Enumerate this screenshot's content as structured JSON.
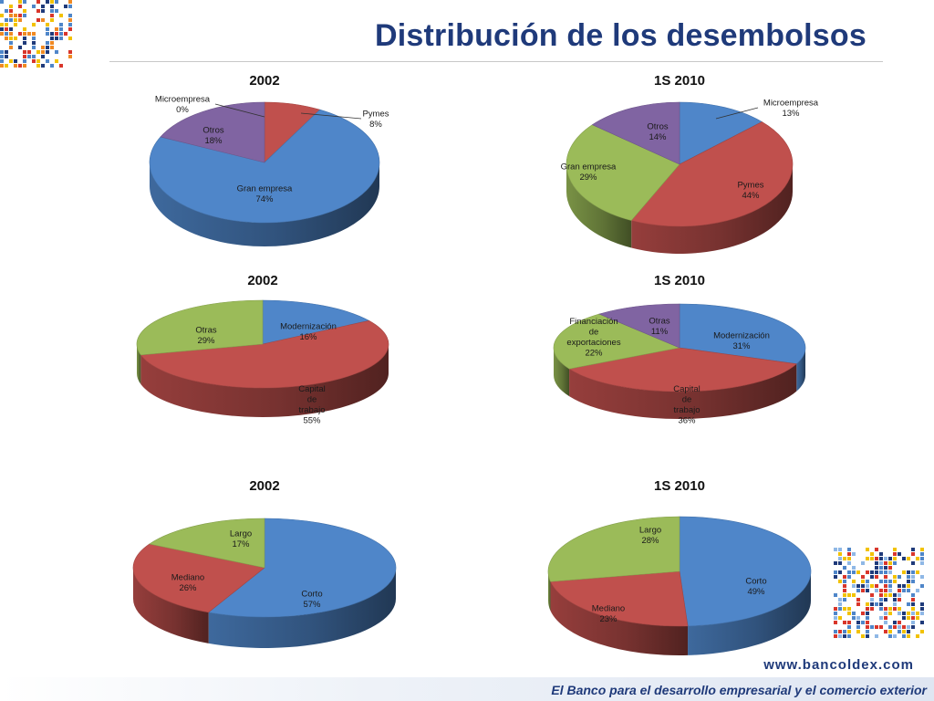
{
  "title": "Distribución de los desembolsos",
  "footer": {
    "url": "www.bancoldex.com",
    "slogan": "El Banco para el desarrollo empresarial y el comercio exterior"
  },
  "colors": {
    "title": "#1f3a7a",
    "blue": "#4f86c9",
    "red": "#c0504d",
    "green": "#9bbb59",
    "purple": "#8064a2"
  },
  "chart_data": [
    {
      "type": "pie",
      "title": "2002",
      "slices": [
        {
          "label": "Microempresa",
          "value": 0,
          "pct": "0%",
          "color": "#c0504d"
        },
        {
          "label": "Pymes",
          "value": 8,
          "pct": "8%",
          "color": "#c0504d"
        },
        {
          "label": "Gran empresa",
          "value": 74,
          "pct": "74%",
          "color": "#4f86c9"
        },
        {
          "label": "Otros",
          "value": 18,
          "pct": "18%",
          "color": "#8064a2"
        }
      ]
    },
    {
      "type": "pie",
      "title": "1S 2010",
      "slices": [
        {
          "label": "Microempresa",
          "value": 13,
          "pct": "13%",
          "color": "#4f86c9"
        },
        {
          "label": "Pymes",
          "value": 44,
          "pct": "44%",
          "color": "#c0504d"
        },
        {
          "label": "Gran empresa",
          "value": 29,
          "pct": "29%",
          "color": "#9bbb59"
        },
        {
          "label": "Otros",
          "value": 14,
          "pct": "14%",
          "color": "#8064a2"
        }
      ]
    },
    {
      "type": "pie",
      "title": "2002",
      "slices": [
        {
          "label": "Modernización",
          "value": 16,
          "pct": "16%",
          "color": "#4f86c9"
        },
        {
          "label": "Capital de trabajo",
          "value": 55,
          "pct": "55%",
          "color": "#c0504d"
        },
        {
          "label": "Otras",
          "value": 29,
          "pct": "29%",
          "color": "#9bbb59"
        }
      ]
    },
    {
      "type": "pie",
      "title": "1S 2010",
      "slices": [
        {
          "label": "Modernización",
          "value": 31,
          "pct": "31%",
          "color": "#4f86c9"
        },
        {
          "label": "Capital de trabajo",
          "value": 36,
          "pct": "36%",
          "color": "#c0504d"
        },
        {
          "label": "Financiación de exportaciones",
          "value": 22,
          "pct": "22%",
          "color": "#9bbb59"
        },
        {
          "label": "Otras",
          "value": 11,
          "pct": "11%",
          "color": "#8064a2"
        }
      ]
    },
    {
      "type": "pie",
      "title": "2002",
      "slices": [
        {
          "label": "Corto",
          "value": 57,
          "pct": "57%",
          "color": "#4f86c9"
        },
        {
          "label": "Mediano",
          "value": 26,
          "pct": "26%",
          "color": "#c0504d"
        },
        {
          "label": "Largo",
          "value": 17,
          "pct": "17%",
          "color": "#9bbb59"
        }
      ]
    },
    {
      "type": "pie",
      "title": "1S 2010",
      "slices": [
        {
          "label": "Corto",
          "value": 49,
          "pct": "49%",
          "color": "#4f86c9"
        },
        {
          "label": "Mediano",
          "value": 23,
          "pct": "23%",
          "color": "#c0504d"
        },
        {
          "label": "Largo",
          "value": 28,
          "pct": "28%",
          "color": "#9bbb59"
        }
      ]
    }
  ]
}
